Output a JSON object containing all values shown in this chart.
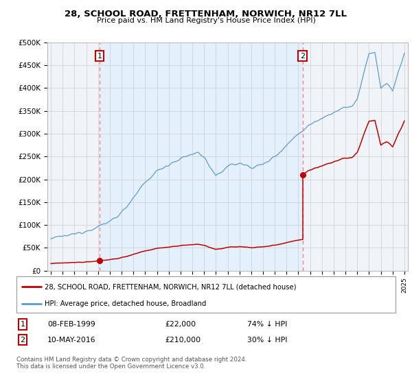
{
  "title": "28, SCHOOL ROAD, FRETTENHAM, NORWICH, NR12 7LL",
  "subtitle": "Price paid vs. HM Land Registry's House Price Index (HPI)",
  "ylim": [
    0,
    500000
  ],
  "yticks": [
    0,
    50000,
    100000,
    150000,
    200000,
    250000,
    300000,
    350000,
    400000,
    450000,
    500000
  ],
  "ytick_labels": [
    "£0",
    "£50K",
    "£100K",
    "£150K",
    "£200K",
    "£250K",
    "£300K",
    "£350K",
    "£400K",
    "£450K",
    "£500K"
  ],
  "xlim_min": 1994.7,
  "xlim_max": 2025.3,
  "sale1_date": 1999.12,
  "sale1_price": 22000,
  "sale2_date": 2016.37,
  "sale2_price": 210000,
  "sale1_date_str": "08-FEB-1999",
  "sale1_price_str": "£22,000",
  "sale1_hpi_str": "74% ↓ HPI",
  "sale2_date_str": "10-MAY-2016",
  "sale2_price_str": "£210,000",
  "sale2_hpi_str": "30% ↓ HPI",
  "hpi_color": "#5b9bd5",
  "price_color": "#c00000",
  "vline_color": "#ff8080",
  "shade_color": "#ddeeff",
  "grid_color": "#cccccc",
  "bg_color": "#f0f4f8",
  "legend_line1": "28, SCHOOL ROAD, FRETTENHAM, NORWICH, NR12 7LL (detached house)",
  "legend_line2": "HPI: Average price, detached house, Broadland",
  "footnote": "Contains HM Land Registry data © Crown copyright and database right 2024.\nThis data is licensed under the Open Government Licence v3.0.",
  "hpi_data_years": [
    1995.0,
    1995.083,
    1995.167,
    1995.25,
    1995.333,
    1995.417,
    1995.5,
    1995.583,
    1995.667,
    1995.75,
    1995.833,
    1995.917,
    1996.0,
    1996.083,
    1996.167,
    1996.25,
    1996.333,
    1996.417,
    1996.5,
    1996.583,
    1996.667,
    1996.75,
    1996.833,
    1996.917,
    1997.0,
    1997.083,
    1997.167,
    1997.25,
    1997.333,
    1997.417,
    1997.5,
    1997.583,
    1997.667,
    1997.75,
    1997.833,
    1997.917,
    1998.0,
    1998.083,
    1998.167,
    1998.25,
    1998.333,
    1998.417,
    1998.5,
    1998.583,
    1998.667,
    1998.75,
    1998.833,
    1998.917,
    1999.0,
    1999.083,
    1999.167,
    1999.25,
    1999.333,
    1999.417,
    1999.5,
    1999.583,
    1999.667,
    1999.75,
    1999.833,
    1999.917,
    2000.0,
    2000.083,
    2000.167,
    2000.25,
    2000.333,
    2000.417,
    2000.5,
    2000.583,
    2000.667,
    2000.75,
    2000.833,
    2000.917,
    2001.0,
    2001.083,
    2001.167,
    2001.25,
    2001.333,
    2001.417,
    2001.5,
    2001.583,
    2001.667,
    2001.75,
    2001.833,
    2001.917,
    2002.0,
    2002.083,
    2002.167,
    2002.25,
    2002.333,
    2002.417,
    2002.5,
    2002.583,
    2002.667,
    2002.75,
    2002.833,
    2002.917,
    2003.0,
    2003.083,
    2003.167,
    2003.25,
    2003.333,
    2003.417,
    2003.5,
    2003.583,
    2003.667,
    2003.75,
    2003.833,
    2003.917,
    2004.0,
    2004.083,
    2004.167,
    2004.25,
    2004.333,
    2004.417,
    2004.5,
    2004.583,
    2004.667,
    2004.75,
    2004.833,
    2004.917,
    2005.0,
    2005.083,
    2005.167,
    2005.25,
    2005.333,
    2005.417,
    2005.5,
    2005.583,
    2005.667,
    2005.75,
    2005.833,
    2005.917,
    2006.0,
    2006.083,
    2006.167,
    2006.25,
    2006.333,
    2006.417,
    2006.5,
    2006.583,
    2006.667,
    2006.75,
    2006.833,
    2006.917,
    2007.0,
    2007.083,
    2007.167,
    2007.25,
    2007.333,
    2007.417,
    2007.5,
    2007.583,
    2007.667,
    2007.75,
    2007.833,
    2007.917,
    2008.0,
    2008.083,
    2008.167,
    2008.25,
    2008.333,
    2008.417,
    2008.5,
    2008.583,
    2008.667,
    2008.75,
    2008.833,
    2008.917,
    2009.0,
    2009.083,
    2009.167,
    2009.25,
    2009.333,
    2009.417,
    2009.5,
    2009.583,
    2009.667,
    2009.75,
    2009.833,
    2009.917,
    2010.0,
    2010.083,
    2010.167,
    2010.25,
    2010.333,
    2010.417,
    2010.5,
    2010.583,
    2010.667,
    2010.75,
    2010.833,
    2010.917,
    2011.0,
    2011.083,
    2011.167,
    2011.25,
    2011.333,
    2011.417,
    2011.5,
    2011.583,
    2011.667,
    2011.75,
    2011.833,
    2011.917,
    2012.0,
    2012.083,
    2012.167,
    2012.25,
    2012.333,
    2012.417,
    2012.5,
    2012.583,
    2012.667,
    2012.75,
    2012.833,
    2012.917,
    2013.0,
    2013.083,
    2013.167,
    2013.25,
    2013.333,
    2013.417,
    2013.5,
    2013.583,
    2013.667,
    2013.75,
    2013.833,
    2013.917,
    2014.0,
    2014.083,
    2014.167,
    2014.25,
    2014.333,
    2014.417,
    2014.5,
    2014.583,
    2014.667,
    2014.75,
    2014.833,
    2014.917,
    2015.0,
    2015.083,
    2015.167,
    2015.25,
    2015.333,
    2015.417,
    2015.5,
    2015.583,
    2015.667,
    2015.75,
    2015.833,
    2015.917,
    2016.0,
    2016.083,
    2016.167,
    2016.25,
    2016.333,
    2016.417,
    2016.5,
    2016.583,
    2016.667,
    2016.75,
    2016.833,
    2016.917,
    2017.0,
    2017.083,
    2017.167,
    2017.25,
    2017.333,
    2017.417,
    2017.5,
    2017.583,
    2017.667,
    2017.75,
    2017.833,
    2017.917,
    2018.0,
    2018.083,
    2018.167,
    2018.25,
    2018.333,
    2018.417,
    2018.5,
    2018.583,
    2018.667,
    2018.75,
    2018.833,
    2018.917,
    2019.0,
    2019.083,
    2019.167,
    2019.25,
    2019.333,
    2019.417,
    2019.5,
    2019.583,
    2019.667,
    2019.75,
    2019.833,
    2019.917,
    2020.0,
    2020.083,
    2020.167,
    2020.25,
    2020.333,
    2020.417,
    2020.5,
    2020.583,
    2020.667,
    2020.75,
    2020.833,
    2020.917,
    2021.0,
    2021.083,
    2021.167,
    2021.25,
    2021.333,
    2021.417,
    2021.5,
    2021.583,
    2021.667,
    2021.75,
    2021.833,
    2021.917,
    2022.0,
    2022.083,
    2022.167,
    2022.25,
    2022.333,
    2022.417,
    2022.5,
    2022.583,
    2022.667,
    2022.75,
    2022.833,
    2022.917,
    2023.0,
    2023.083,
    2023.167,
    2023.25,
    2023.333,
    2023.417,
    2023.5,
    2023.583,
    2023.667,
    2023.75,
    2023.833,
    2023.917,
    2024.0,
    2024.083,
    2024.167,
    2024.25,
    2024.333,
    2024.417,
    2024.5,
    2024.583,
    2024.667,
    2024.75,
    2024.833,
    2024.917,
    2025.0
  ]
}
